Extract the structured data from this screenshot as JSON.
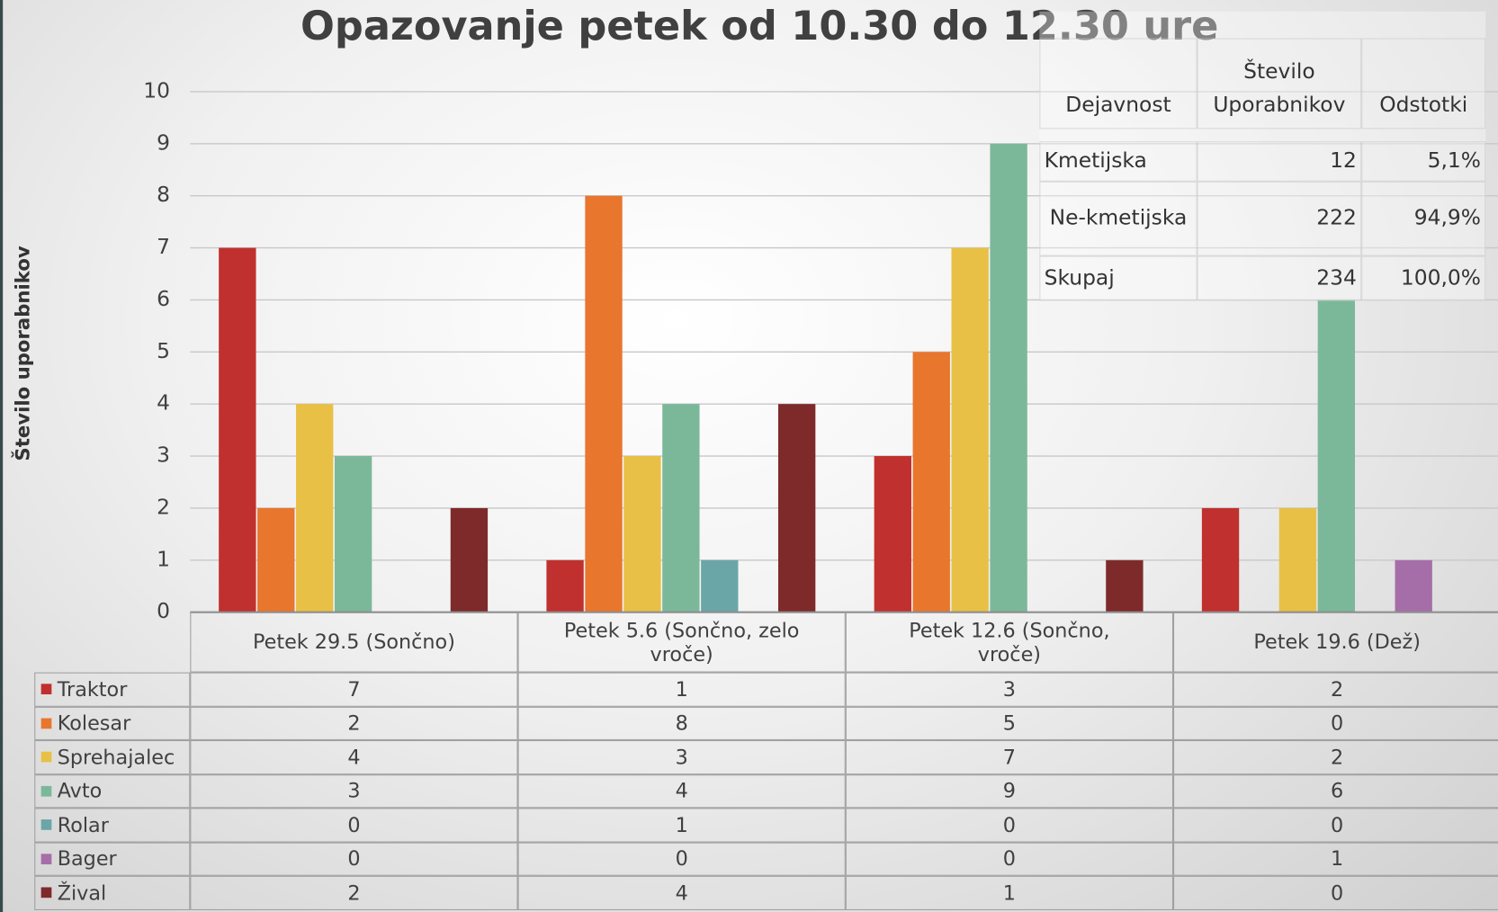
{
  "chart_data": {
    "type": "bar",
    "title": "Opazovanje petek od 10.30 do 12.30 ure",
    "y_label": "Število uporabnikov",
    "categories": [
      "Petek 29.5 (Sončno)",
      "Petek 5.6 (Sončno, zelo vroče)",
      "Petek 12.6 (Sončno, vroče)",
      "Petek 19.6 (Dež)"
    ],
    "series": [
      {
        "name": "Traktor",
        "color": "#c0302e",
        "values": [
          7,
          1,
          3,
          2
        ]
      },
      {
        "name": "Kolesar",
        "color": "#e8762d",
        "values": [
          2,
          8,
          5,
          0
        ]
      },
      {
        "name": "Sprehajalec",
        "color": "#e8c046",
        "values": [
          4,
          3,
          7,
          2
        ]
      },
      {
        "name": "Avto",
        "color": "#7bb89a",
        "values": [
          3,
          4,
          9,
          6
        ]
      },
      {
        "name": "Rolar",
        "color": "#6aa6a8",
        "values": [
          0,
          1,
          0,
          0
        ]
      },
      {
        "name": "Bager",
        "color": "#a66ea8",
        "values": [
          0,
          0,
          0,
          1
        ]
      },
      {
        "name": "Žival",
        "color": "#7e2a2a",
        "values": [
          2,
          4,
          1,
          0
        ]
      }
    ],
    "ylim": [
      0,
      10
    ],
    "yticks": [
      0,
      1,
      2,
      3,
      4,
      5,
      6,
      7,
      8,
      9,
      10
    ],
    "grid": true
  },
  "summary_table": {
    "header": [
      "Dejavnost",
      "Število Uporabnikov",
      "Odstotki"
    ],
    "rows": [
      [
        "Kmetijska",
        12,
        "5,1%"
      ],
      [
        "Ne-kmetijska",
        222,
        "94,9%"
      ],
      [
        "Skupaj",
        234,
        "100,0%"
      ]
    ]
  }
}
